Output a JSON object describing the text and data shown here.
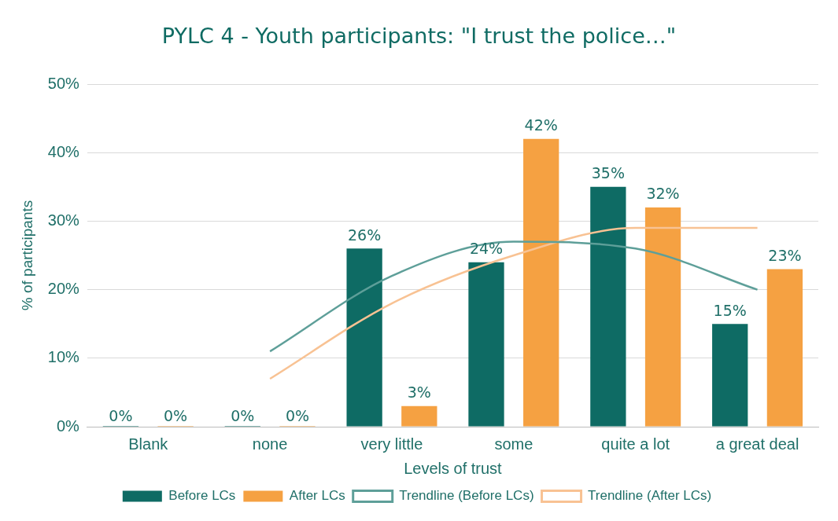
{
  "chart_data": {
    "type": "bar",
    "title": "PYLC 4 - Youth participants: \"I trust the police…\"",
    "xlabel": "Levels of trust",
    "ylabel": "% of participants",
    "categories": [
      "Blank",
      "none",
      "very little",
      "some",
      "quite a lot",
      "a great deal"
    ],
    "series": [
      {
        "name": "Before LCs",
        "color": "#0e6b64",
        "values": [
          0,
          0,
          26,
          24,
          35,
          15
        ],
        "value_labels": [
          "0%",
          "0%",
          "26%",
          "24%",
          "35%",
          "15%"
        ]
      },
      {
        "name": "After LCs",
        "color": "#f5a142",
        "values": [
          0,
          0,
          3,
          42,
          32,
          23
        ],
        "value_labels": [
          "0%",
          "0%",
          "3%",
          "42%",
          "32%",
          "23%"
        ]
      },
      {
        "name": "Trendline (Before LCs)",
        "type": "line",
        "color": "#5e9f99",
        "values": [
          null,
          11,
          22,
          27,
          26,
          20
        ]
      },
      {
        "name": "Trendline (After LCs)",
        "type": "line",
        "color": "#f8c293",
        "values": [
          null,
          7,
          18,
          25,
          29,
          29
        ]
      }
    ],
    "ylim": [
      0,
      50
    ],
    "yticks": [
      {
        "value": 0,
        "label": "0%"
      },
      {
        "value": 10,
        "label": "10%"
      },
      {
        "value": 20,
        "label": "20%"
      },
      {
        "value": 30,
        "label": "30%"
      },
      {
        "value": 40,
        "label": "40%"
      },
      {
        "value": 50,
        "label": "50%"
      }
    ],
    "grid": "y",
    "legend": "bottom",
    "marker": "none"
  }
}
